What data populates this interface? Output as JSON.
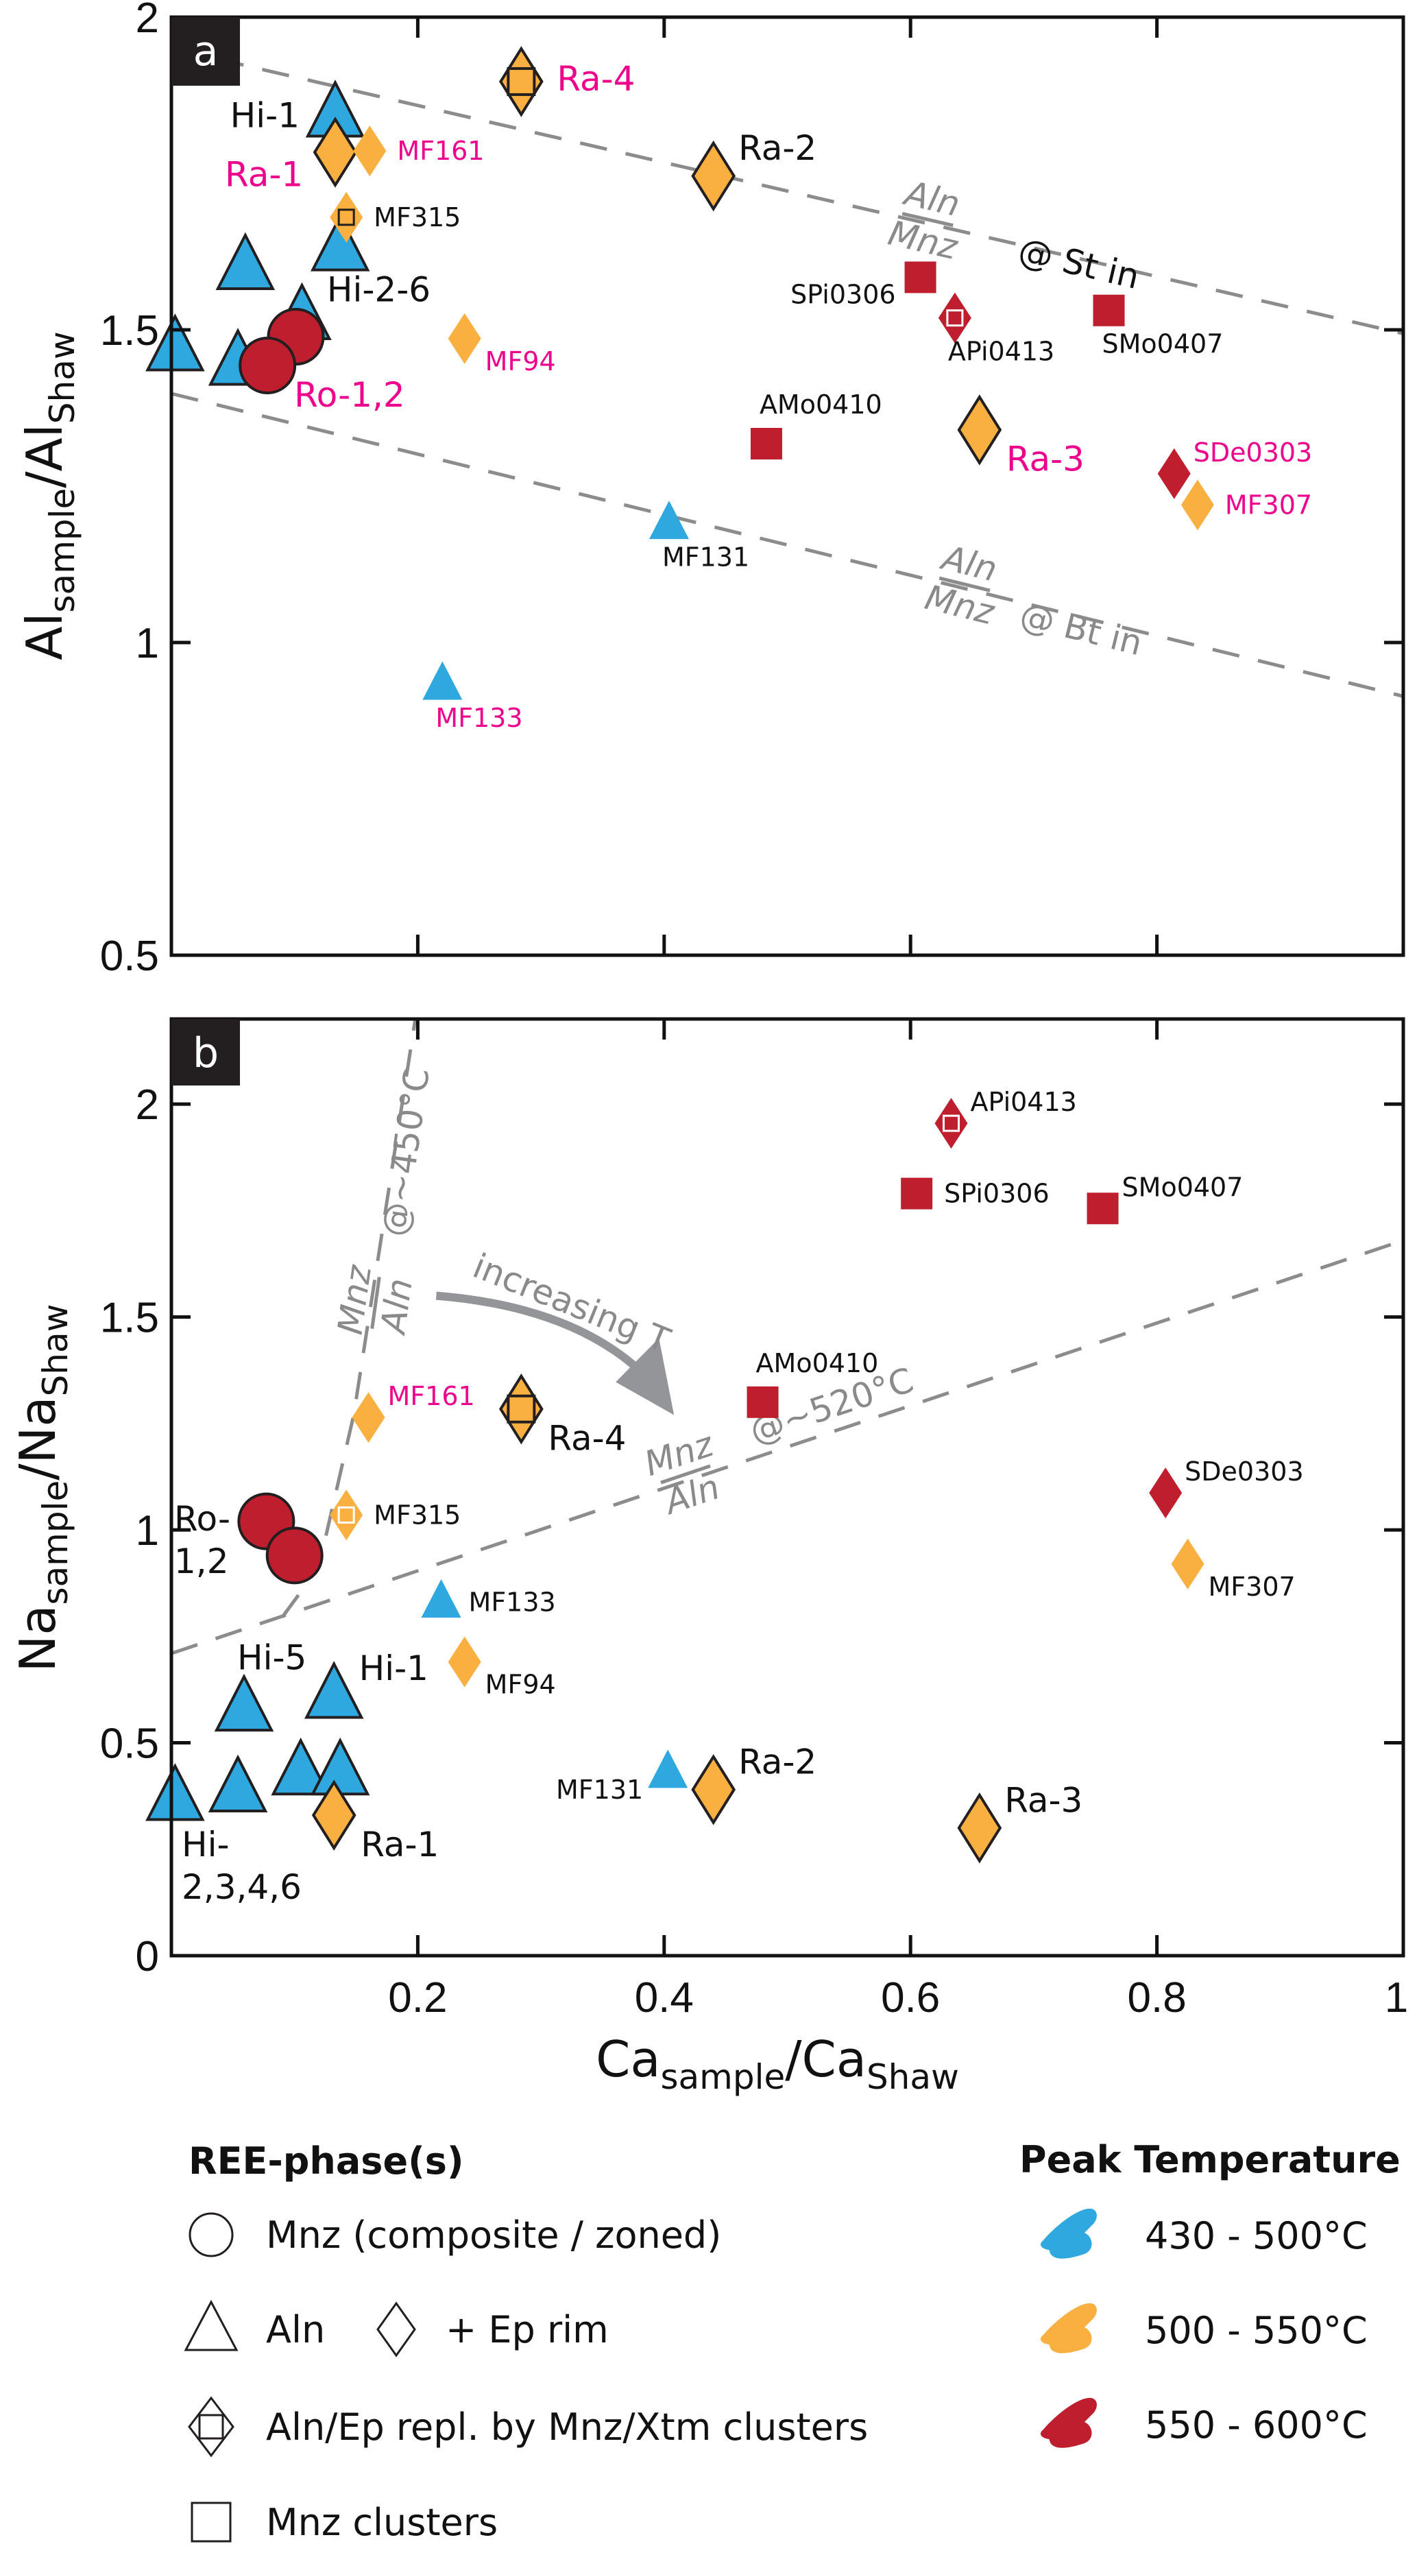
{
  "colors": {
    "blue": "#2EA8DF",
    "orange": "#F9B041",
    "red": "#BE1E2D",
    "magenta": "#EC008C",
    "black": "#111111",
    "gray": "#8c8c8c"
  },
  "chart_data": [
    {
      "type": "scatter",
      "panel": "a",
      "title": "",
      "xlabel": "Ca_sample/Ca_Shaw",
      "ylabel": "Al_sample/Al_Shaw",
      "xlim": [
        0,
        1
      ],
      "ylim": [
        0.5,
        2
      ],
      "xticks": [
        0.2,
        0.4,
        0.6,
        0.8,
        1
      ],
      "yticks": [
        0.5,
        1,
        1.5,
        2
      ],
      "ytick_labels": [
        "0.5",
        "1",
        "1.5",
        "2"
      ],
      "grid": false,
      "points": [
        {
          "x": 0.003,
          "y": 1.47,
          "shape": "triangle",
          "temp": "blue",
          "size": "large",
          "label": ""
        },
        {
          "x": 0.054,
          "y": 1.447,
          "shape": "triangle",
          "temp": "blue",
          "size": "large",
          "label": ""
        },
        {
          "x": 0.06,
          "y": 1.6,
          "shape": "triangle",
          "temp": "blue",
          "size": "large",
          "label": ""
        },
        {
          "x": 0.137,
          "y": 1.63,
          "shape": "triangle",
          "temp": "blue",
          "size": "large",
          "label": ""
        },
        {
          "x": 0.106,
          "y": 1.52,
          "shape": "triangle",
          "temp": "blue",
          "size": "large",
          "label": "Hi-2-6",
          "label_color": "black",
          "label_pos": "right-top",
          "label_size": "big"
        },
        {
          "x": 0.133,
          "y": 1.844,
          "shape": "triangle",
          "temp": "blue",
          "size": "large",
          "label": "Hi-1",
          "label_color": "black",
          "label_pos": "left",
          "label_size": "big"
        },
        {
          "x": 0.133,
          "y": 1.784,
          "shape": "diamond",
          "temp": "orange",
          "size": "large",
          "label": "Ra-1",
          "label_color": "magenta",
          "label_pos": "left-below",
          "label_size": "big"
        },
        {
          "x": 0.161,
          "y": 1.786,
          "shape": "diamond",
          "temp": "orange",
          "size": "small",
          "label": "MF161",
          "label_color": "magenta",
          "label_pos": "right"
        },
        {
          "x": 0.142,
          "y": 1.68,
          "shape": "diamond-square",
          "temp": "orange",
          "size": "small",
          "square": "black",
          "label": "MF315",
          "label_color": "black",
          "label_pos": "right"
        },
        {
          "x": 0.284,
          "y": 1.897,
          "shape": "diamond-square",
          "temp": "orange",
          "size": "large",
          "square": "black",
          "label": "Ra-4",
          "label_color": "magenta",
          "label_pos": "right",
          "label_size": "big"
        },
        {
          "x": 0.101,
          "y": 1.489,
          "shape": "circle",
          "temp": "red",
          "size": "large",
          "label": ""
        },
        {
          "x": 0.078,
          "y": 1.443,
          "shape": "circle",
          "temp": "red",
          "size": "large",
          "label": "Ro-1,2",
          "label_color": "magenta",
          "label_pos": "right-below",
          "label_size": "big"
        },
        {
          "x": 0.238,
          "y": 1.486,
          "shape": "diamond",
          "temp": "orange",
          "size": "small",
          "label": "MF94",
          "label_color": "magenta",
          "label_pos": "right-below"
        },
        {
          "x": 0.44,
          "y": 1.746,
          "shape": "diamond",
          "temp": "orange",
          "size": "large",
          "label": "Ra-2",
          "label_color": "black",
          "label_pos": "right-top",
          "label_size": "big"
        },
        {
          "x": 0.608,
          "y": 1.584,
          "shape": "square",
          "temp": "red",
          "size": "small",
          "label": "SPi0306",
          "label_color": "black",
          "label_pos": "left-below"
        },
        {
          "x": 0.636,
          "y": 1.519,
          "shape": "diamond-square",
          "temp": "red",
          "size": "small",
          "square": "white",
          "label": "APi0413",
          "label_color": "black",
          "label_pos": "below"
        },
        {
          "x": 0.761,
          "y": 1.531,
          "shape": "square",
          "temp": "red",
          "size": "small",
          "label": "SMo0407",
          "label_color": "black",
          "label_pos": "below"
        },
        {
          "x": 0.483,
          "y": 1.318,
          "shape": "square",
          "temp": "red",
          "size": "small",
          "label": "AMo0410",
          "label_color": "black",
          "label_pos": "above"
        },
        {
          "x": 0.656,
          "y": 1.34,
          "shape": "diamond",
          "temp": "orange",
          "size": "large",
          "label": "Ra-3",
          "label_color": "magenta",
          "label_pos": "right-below",
          "label_size": "big"
        },
        {
          "x": 0.814,
          "y": 1.27,
          "shape": "diamond",
          "temp": "red",
          "size": "small",
          "label": "SDe0303",
          "label_color": "magenta",
          "label_pos": "right-top"
        },
        {
          "x": 0.833,
          "y": 1.22,
          "shape": "diamond",
          "temp": "orange",
          "size": "small",
          "label": "MF307",
          "label_color": "magenta",
          "label_pos": "right"
        },
        {
          "x": 0.404,
          "y": 1.19,
          "shape": "triangle",
          "temp": "blue",
          "size": "small",
          "label": "MF131",
          "label_color": "black",
          "label_pos": "below"
        },
        {
          "x": 0.22,
          "y": 0.933,
          "shape": "triangle",
          "temp": "blue",
          "size": "small",
          "label": "MF133",
          "label_color": "magenta",
          "label_pos": "below"
        }
      ],
      "reference_lines": [
        {
          "name": "st-in",
          "from": [
            0,
            1.95
          ],
          "to": [
            1,
            1.494
          ],
          "upper": "Aln",
          "lower": "Mnz",
          "suffix": "@ St in",
          "label_at_x": 0.6
        },
        {
          "name": "bt-in",
          "from": [
            0,
            1.398
          ],
          "to": [
            1,
            0.914
          ],
          "upper": "Aln",
          "lower": "Mnz",
          "suffix": "@ Bt in",
          "label_at_x": 0.63
        }
      ]
    },
    {
      "type": "scatter",
      "panel": "b",
      "title": "",
      "xlabel": "Ca_sample/Ca_Shaw",
      "ylabel": "Na_sample/Na_Shaw",
      "xlim": [
        0,
        1
      ],
      "ylim": [
        0,
        2.2
      ],
      "xticks": [
        0.2,
        0.4,
        0.6,
        0.8,
        1
      ],
      "xtick_labels": [
        "0.2",
        "0.4",
        "0.6",
        "0.8",
        "1"
      ],
      "yticks": [
        0,
        0.5,
        1,
        1.5,
        2
      ],
      "ytick_labels": [
        "0",
        "0.5",
        "1",
        "1.5",
        "2"
      ],
      "grid": false,
      "points": [
        {
          "x": 0.003,
          "y": 0.37,
          "shape": "triangle",
          "temp": "blue",
          "size": "large",
          "label": ""
        },
        {
          "x": 0.054,
          "y": 0.39,
          "shape": "triangle",
          "temp": "blue",
          "size": "large",
          "label": "Hi-2,3,4,6",
          "label_color": "black",
          "label_pos": "custom-hi",
          "label_size": "big"
        },
        {
          "x": 0.105,
          "y": 0.43,
          "shape": "triangle",
          "temp": "blue",
          "size": "large",
          "label": ""
        },
        {
          "x": 0.137,
          "y": 0.43,
          "shape": "triangle",
          "temp": "blue",
          "size": "large",
          "label": ""
        },
        {
          "x": 0.059,
          "y": 0.58,
          "shape": "triangle",
          "temp": "blue",
          "size": "large",
          "label": "Hi-5",
          "label_color": "black",
          "label_pos": "above",
          "label_size": "big"
        },
        {
          "x": 0.132,
          "y": 0.61,
          "shape": "triangle",
          "temp": "blue",
          "size": "large",
          "label": "Hi-1",
          "label_color": "black",
          "label_pos": "right-top",
          "label_size": "big"
        },
        {
          "x": 0.132,
          "y": 0.33,
          "shape": "diamond",
          "temp": "orange",
          "size": "large",
          "label": "Ra-1",
          "label_color": "black",
          "label_pos": "right-below",
          "label_size": "big"
        },
        {
          "x": 0.077,
          "y": 1.02,
          "shape": "circle",
          "temp": "red",
          "size": "large",
          "label": "Ro-1,2",
          "label_color": "black",
          "label_pos": "custom-ro",
          "label_size": "big"
        },
        {
          "x": 0.1,
          "y": 0.94,
          "shape": "circle",
          "temp": "red",
          "size": "large",
          "label": ""
        },
        {
          "x": 0.142,
          "y": 1.035,
          "shape": "diamond-square",
          "temp": "orange",
          "size": "small",
          "square": "white",
          "label": "MF315",
          "label_color": "black",
          "label_pos": "right"
        },
        {
          "x": 0.16,
          "y": 1.264,
          "shape": "diamond",
          "temp": "orange",
          "size": "small",
          "label": "MF161",
          "label_color": "magenta",
          "label_pos": "right-top"
        },
        {
          "x": 0.284,
          "y": 1.284,
          "shape": "diamond-square",
          "temp": "orange",
          "size": "large",
          "square": "black",
          "label": "Ra-4",
          "label_color": "black",
          "label_pos": "right-below",
          "label_size": "big"
        },
        {
          "x": 0.219,
          "y": 0.83,
          "shape": "triangle",
          "temp": "blue",
          "size": "small",
          "label": "MF133",
          "label_color": "black",
          "label_pos": "right"
        },
        {
          "x": 0.238,
          "y": 0.69,
          "shape": "diamond",
          "temp": "orange",
          "size": "small",
          "label": "MF94",
          "label_color": "black",
          "label_pos": "right-below"
        },
        {
          "x": 0.403,
          "y": 0.43,
          "shape": "triangle",
          "temp": "blue",
          "size": "small",
          "label": "MF131",
          "label_color": "black",
          "label_pos": "left-below"
        },
        {
          "x": 0.44,
          "y": 0.39,
          "shape": "diamond",
          "temp": "orange",
          "size": "large",
          "label": "Ra-2",
          "label_color": "black",
          "label_pos": "right-top",
          "label_size": "big"
        },
        {
          "x": 0.656,
          "y": 0.3,
          "shape": "diamond",
          "temp": "orange",
          "size": "large",
          "label": "Ra-3",
          "label_color": "black",
          "label_pos": "right-top",
          "label_size": "big"
        },
        {
          "x": 0.48,
          "y": 1.3,
          "shape": "square",
          "temp": "red",
          "size": "small",
          "label": "AMo0410",
          "label_color": "black",
          "label_pos": "above"
        },
        {
          "x": 0.605,
          "y": 1.79,
          "shape": "square",
          "temp": "red",
          "size": "small",
          "label": "SPi0306",
          "label_color": "black",
          "label_pos": "right"
        },
        {
          "x": 0.633,
          "y": 1.955,
          "shape": "diamond-square",
          "temp": "red",
          "size": "small",
          "square": "white",
          "label": "APi0413",
          "label_color": "black",
          "label_pos": "right-top"
        },
        {
          "x": 0.756,
          "y": 1.755,
          "shape": "square",
          "temp": "red",
          "size": "small",
          "label": "SMo0407",
          "label_color": "black",
          "label_pos": "right-top"
        },
        {
          "x": 0.807,
          "y": 1.087,
          "shape": "diamond",
          "temp": "red",
          "size": "small",
          "label": "SDe0303",
          "label_color": "black",
          "label_pos": "right-top"
        },
        {
          "x": 0.825,
          "y": 0.92,
          "shape": "diamond",
          "temp": "orange",
          "size": "small",
          "label": "MF307",
          "label_color": "black",
          "label_pos": "right-below"
        }
      ],
      "reference_lines": [
        {
          "name": "520C",
          "from": [
            0,
            0.71
          ],
          "to": [
            1,
            1.68
          ],
          "upper": "Mnz",
          "lower": "Aln",
          "suffix": "@~520°C"
        },
        {
          "name": "450C",
          "points": [
            [
              0.09,
              0.795
            ],
            [
              0.109,
              0.87
            ],
            [
              0.125,
              0.98
            ],
            [
              0.148,
              1.27
            ],
            [
              0.198,
              2.2
            ]
          ],
          "upper": "Mnz",
          "lower": "Aln",
          "suffix": "@~450°C"
        }
      ],
      "annotations": [
        {
          "text": "increasing T",
          "arrow_from": [
            0.215,
            1.55
          ],
          "arrow_to": [
            0.408,
            1.27
          ]
        }
      ]
    }
  ],
  "legend": {
    "phase_title": "REE-phase(s)",
    "phase_items": [
      {
        "symbol": "circle",
        "label": "Mnz (composite / zoned)"
      },
      {
        "symbol": "triangle",
        "label": "Aln",
        "extra_symbol": "diamond",
        "extra_label": "+ Ep rim"
      },
      {
        "symbol": "diamond-square",
        "label": "Aln/Ep repl. by Mnz/Xtm clusters"
      },
      {
        "symbol": "square",
        "label": "Mnz clusters"
      }
    ],
    "temp_title": "Peak Temperature",
    "temp_items": [
      {
        "color": "blue",
        "label": "430 - 500°C"
      },
      {
        "color": "orange",
        "label": "500 - 550°C"
      },
      {
        "color": "red",
        "label": "550 - 600°C"
      }
    ]
  },
  "panel_labels": [
    "a",
    "b"
  ],
  "axis_labels": {
    "x_main": "Ca",
    "x_sub1": "sample",
    "x_mid": "/Ca",
    "x_sub2": "Shaw",
    "ya_main": "Al",
    "ya_sub1": "sample",
    "ya_mid": "/Al",
    "ya_sub2": "Shaw",
    "yb_main": "Na",
    "yb_sub1": "sample",
    "yb_mid": "/Na",
    "yb_sub2": "Shaw"
  }
}
